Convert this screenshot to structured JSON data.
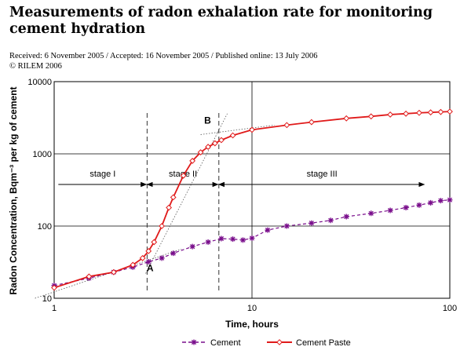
{
  "header": {
    "title": "Measurements of radon exhalation rate for monitoring cement hydration",
    "history": "Received: 6 November 2005 / Accepted: 16 November 2005 / Published online: 13 July 2006",
    "copyright": "© RILEM 2006"
  },
  "colors": {
    "cement": "#7a0f8c",
    "cement_paste": "#e01a1a"
  },
  "chart_data": {
    "type": "line",
    "xlabel": "Time, hours",
    "ylabel": "Radon Concentration, Bqm⁻³ per kg of cement",
    "xscale": "log",
    "yscale": "log",
    "xlim": [
      1,
      100
    ],
    "ylim": [
      10,
      10000
    ],
    "grid": true,
    "legend_position": "bottom",
    "x_ticks": [
      "1",
      "10",
      "100"
    ],
    "y_ticks": [
      "10",
      "100",
      "1000",
      "10000"
    ],
    "stages": [
      {
        "label": "stage I",
        "from": 1.05,
        "to": 2.95
      },
      {
        "label": "stage II",
        "from": 2.95,
        "to": 6.8
      },
      {
        "label": "stage III",
        "from": 6.8,
        "to": 75
      }
    ],
    "stage_boundaries": [
      2.95,
      6.8
    ],
    "points": [
      {
        "label": "A",
        "x": 3.0,
        "y": 33
      },
      {
        "label": "B",
        "x": 6.3,
        "y": 2150
      }
    ],
    "series": [
      {
        "name": "Cement",
        "marker": "asterisk",
        "x": [
          1,
          1.5,
          2.0,
          2.5,
          3.0,
          3.5,
          4.0,
          5.0,
          6.0,
          7.0,
          8.0,
          9.0,
          10.0,
          12.0,
          15.0,
          20.0,
          25.0,
          30.0,
          40.0,
          50.0,
          60.0,
          70.0,
          80.0,
          90.0,
          100.0
        ],
        "values": [
          15,
          19,
          23,
          27,
          32,
          36,
          42,
          52,
          60,
          67,
          66,
          64,
          68,
          88,
          100,
          110,
          120,
          135,
          150,
          165,
          180,
          195,
          210,
          225,
          230
        ]
      },
      {
        "name": "Cement Paste",
        "marker": "diamond",
        "x": [
          1,
          1.5,
          2.0,
          2.5,
          2.8,
          3.0,
          3.2,
          3.5,
          3.8,
          4.0,
          4.5,
          5.0,
          5.5,
          6.0,
          6.5,
          7.0,
          8.0,
          10.0,
          15.0,
          20.0,
          30.0,
          40.0,
          50.0,
          60.0,
          70.0,
          80.0,
          90.0,
          100.0
        ],
        "values": [
          14,
          20,
          23,
          29,
          36,
          45,
          60,
          100,
          180,
          250,
          500,
          800,
          1050,
          1250,
          1400,
          1550,
          1800,
          2150,
          2500,
          2750,
          3100,
          3300,
          3500,
          3600,
          3700,
          3750,
          3800,
          3850
        ]
      }
    ]
  }
}
